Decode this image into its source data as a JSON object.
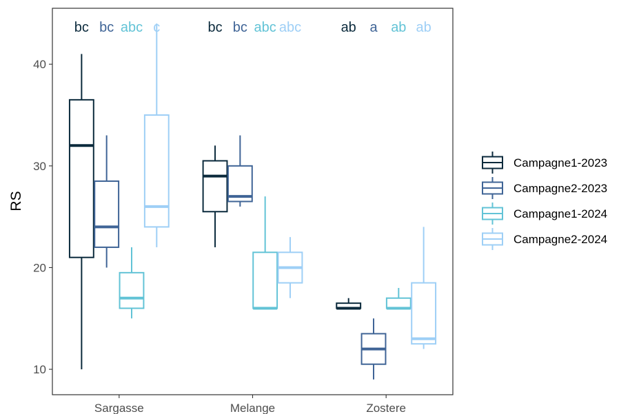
{
  "chart_data": {
    "type": "box",
    "ylabel": "RS",
    "xlabel": "",
    "ylim": [
      7.5,
      45.5
    ],
    "yticks": [
      10,
      20,
      30,
      40
    ],
    "ytick_labels": [
      "10",
      "20",
      "30",
      "40"
    ],
    "categories": [
      "Sargasse",
      "Melange",
      "Zostere"
    ],
    "legend_placement": "right",
    "grid": false,
    "series": [
      {
        "name": "Campagne1-2023",
        "color": "#0b2a3c",
        "boxes": [
          {
            "min": 10,
            "q1": 21,
            "median": 32,
            "q3": 36.5,
            "max": 41
          },
          {
            "min": 22,
            "q1": 25.5,
            "median": 29,
            "q3": 30.5,
            "max": 32
          },
          {
            "min": 16,
            "q1": 16,
            "median": 16,
            "q3": 16.5,
            "max": 17
          }
        ],
        "letters": [
          "bc",
          "bc",
          "ab"
        ]
      },
      {
        "name": "Campagne2-2023",
        "color": "#3f6496",
        "boxes": [
          {
            "min": 20,
            "q1": 22,
            "median": 24,
            "q3": 28.5,
            "max": 33
          },
          {
            "min": 26,
            "q1": 26.5,
            "median": 27,
            "q3": 30,
            "max": 33
          },
          {
            "min": 9,
            "q1": 10.5,
            "median": 12,
            "q3": 13.5,
            "max": 15
          }
        ],
        "letters": [
          "bc",
          "bc",
          "a"
        ]
      },
      {
        "name": "Campagne1-2024",
        "color": "#62c3d6",
        "boxes": [
          {
            "min": 15,
            "q1": 16,
            "median": 17,
            "q3": 19.5,
            "max": 22
          },
          {
            "min": 16,
            "q1": 16,
            "median": 16,
            "q3": 21.5,
            "max": 27
          },
          {
            "min": 16,
            "q1": 16,
            "median": 16,
            "q3": 17,
            "max": 18
          }
        ],
        "letters": [
          "abc",
          "abc",
          "ab"
        ]
      },
      {
        "name": "Campagne2-2024",
        "color": "#9ecff6",
        "boxes": [
          {
            "min": 22,
            "q1": 24,
            "median": 26,
            "q3": 35,
            "max": 44
          },
          {
            "min": 17,
            "q1": 18.5,
            "median": 20,
            "q3": 21.5,
            "max": 23
          },
          {
            "min": 12,
            "q1": 12.5,
            "median": 13,
            "q3": 18.5,
            "max": 24
          }
        ],
        "letters": [
          "c",
          "abc",
          "ab"
        ]
      }
    ]
  }
}
